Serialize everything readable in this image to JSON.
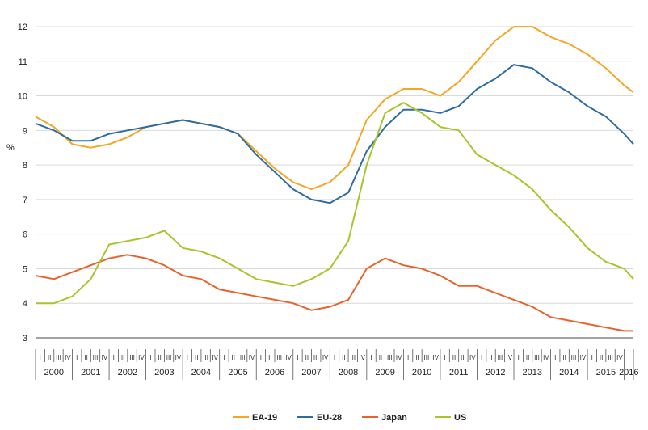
{
  "chart_data": {
    "type": "line",
    "ylabel": "%",
    "ylim": [
      3,
      12
    ],
    "yticks": [
      "3",
      "4",
      "5",
      "6",
      "7",
      "8",
      "9",
      "10",
      "11",
      "12"
    ],
    "years": [
      "2000",
      "2001",
      "2002",
      "2003",
      "2004",
      "2005",
      "2006",
      "2007",
      "2008",
      "2009",
      "2010",
      "2011",
      "2012",
      "2013",
      "2014",
      "2015",
      "2016"
    ],
    "quarter_labels": [
      "I",
      "II",
      "III",
      "IV"
    ],
    "x_range": [
      2000.0,
      2016.25
    ],
    "grid": "horizontal",
    "legend_position": "bottom",
    "series": [
      {
        "name": "EA-19",
        "color": "#f5a623",
        "points": [
          [
            2000.0,
            9.4
          ],
          [
            2000.5,
            9.1
          ],
          [
            2001.0,
            8.6
          ],
          [
            2001.5,
            8.5
          ],
          [
            2002.0,
            8.6
          ],
          [
            2002.5,
            8.8
          ],
          [
            2003.0,
            9.1
          ],
          [
            2003.5,
            9.2
          ],
          [
            2004.0,
            9.3
          ],
          [
            2004.5,
            9.2
          ],
          [
            2005.0,
            9.1
          ],
          [
            2005.5,
            8.9
          ],
          [
            2006.0,
            8.4
          ],
          [
            2006.5,
            7.9
          ],
          [
            2007.0,
            7.5
          ],
          [
            2007.5,
            7.3
          ],
          [
            2008.0,
            7.5
          ],
          [
            2008.5,
            8.0
          ],
          [
            2009.0,
            9.3
          ],
          [
            2009.5,
            9.9
          ],
          [
            2010.0,
            10.2
          ],
          [
            2010.5,
            10.2
          ],
          [
            2011.0,
            10.0
          ],
          [
            2011.5,
            10.4
          ],
          [
            2012.0,
            11.0
          ],
          [
            2012.5,
            11.6
          ],
          [
            2013.0,
            12.0
          ],
          [
            2013.5,
            12.0
          ],
          [
            2014.0,
            11.7
          ],
          [
            2014.5,
            11.5
          ],
          [
            2015.0,
            11.2
          ],
          [
            2015.5,
            10.8
          ],
          [
            2016.0,
            10.3
          ],
          [
            2016.25,
            10.1
          ]
        ]
      },
      {
        "name": "EU-28",
        "color": "#2e6da4",
        "points": [
          [
            2000.0,
            9.2
          ],
          [
            2000.5,
            9.0
          ],
          [
            2001.0,
            8.7
          ],
          [
            2001.5,
            8.7
          ],
          [
            2002.0,
            8.9
          ],
          [
            2002.5,
            9.0
          ],
          [
            2003.0,
            9.1
          ],
          [
            2003.5,
            9.2
          ],
          [
            2004.0,
            9.3
          ],
          [
            2004.5,
            9.2
          ],
          [
            2005.0,
            9.1
          ],
          [
            2005.5,
            8.9
          ],
          [
            2006.0,
            8.3
          ],
          [
            2006.5,
            7.8
          ],
          [
            2007.0,
            7.3
          ],
          [
            2007.5,
            7.0
          ],
          [
            2008.0,
            6.9
          ],
          [
            2008.5,
            7.2
          ],
          [
            2009.0,
            8.4
          ],
          [
            2009.5,
            9.1
          ],
          [
            2010.0,
            9.6
          ],
          [
            2010.5,
            9.6
          ],
          [
            2011.0,
            9.5
          ],
          [
            2011.5,
            9.7
          ],
          [
            2012.0,
            10.2
          ],
          [
            2012.5,
            10.5
          ],
          [
            2013.0,
            10.9
          ],
          [
            2013.5,
            10.8
          ],
          [
            2014.0,
            10.4
          ],
          [
            2014.5,
            10.1
          ],
          [
            2015.0,
            9.7
          ],
          [
            2015.5,
            9.4
          ],
          [
            2016.0,
            8.9
          ],
          [
            2016.25,
            8.6
          ]
        ]
      },
      {
        "name": "Japan",
        "color": "#e8622c",
        "points": [
          [
            2000.0,
            4.8
          ],
          [
            2000.5,
            4.7
          ],
          [
            2001.0,
            4.9
          ],
          [
            2001.5,
            5.1
          ],
          [
            2002.0,
            5.3
          ],
          [
            2002.5,
            5.4
          ],
          [
            2003.0,
            5.3
          ],
          [
            2003.5,
            5.1
          ],
          [
            2004.0,
            4.8
          ],
          [
            2004.5,
            4.7
          ],
          [
            2005.0,
            4.4
          ],
          [
            2005.5,
            4.3
          ],
          [
            2006.0,
            4.2
          ],
          [
            2006.5,
            4.1
          ],
          [
            2007.0,
            4.0
          ],
          [
            2007.5,
            3.8
          ],
          [
            2008.0,
            3.9
          ],
          [
            2008.5,
            4.1
          ],
          [
            2009.0,
            5.0
          ],
          [
            2009.5,
            5.3
          ],
          [
            2010.0,
            5.1
          ],
          [
            2010.5,
            5.0
          ],
          [
            2011.0,
            4.8
          ],
          [
            2011.5,
            4.5
          ],
          [
            2012.0,
            4.5
          ],
          [
            2012.5,
            4.3
          ],
          [
            2013.0,
            4.1
          ],
          [
            2013.5,
            3.9
          ],
          [
            2014.0,
            3.6
          ],
          [
            2014.5,
            3.5
          ],
          [
            2015.0,
            3.4
          ],
          [
            2015.5,
            3.3
          ],
          [
            2016.0,
            3.2
          ],
          [
            2016.25,
            3.2
          ]
        ]
      },
      {
        "name": "US",
        "color": "#a8c42a",
        "points": [
          [
            2000.0,
            4.0
          ],
          [
            2000.5,
            4.0
          ],
          [
            2001.0,
            4.2
          ],
          [
            2001.5,
            4.7
          ],
          [
            2002.0,
            5.7
          ],
          [
            2002.5,
            5.8
          ],
          [
            2003.0,
            5.9
          ],
          [
            2003.5,
            6.1
          ],
          [
            2004.0,
            5.6
          ],
          [
            2004.5,
            5.5
          ],
          [
            2005.0,
            5.3
          ],
          [
            2005.5,
            5.0
          ],
          [
            2006.0,
            4.7
          ],
          [
            2006.5,
            4.6
          ],
          [
            2007.0,
            4.5
          ],
          [
            2007.5,
            4.7
          ],
          [
            2008.0,
            5.0
          ],
          [
            2008.5,
            5.8
          ],
          [
            2009.0,
            8.0
          ],
          [
            2009.5,
            9.5
          ],
          [
            2010.0,
            9.8
          ],
          [
            2010.5,
            9.5
          ],
          [
            2011.0,
            9.1
          ],
          [
            2011.5,
            9.0
          ],
          [
            2012.0,
            8.3
          ],
          [
            2012.5,
            8.0
          ],
          [
            2013.0,
            7.7
          ],
          [
            2013.5,
            7.3
          ],
          [
            2014.0,
            6.7
          ],
          [
            2014.5,
            6.2
          ],
          [
            2015.0,
            5.6
          ],
          [
            2015.5,
            5.2
          ],
          [
            2016.0,
            5.0
          ],
          [
            2016.25,
            4.7
          ]
        ]
      }
    ]
  }
}
